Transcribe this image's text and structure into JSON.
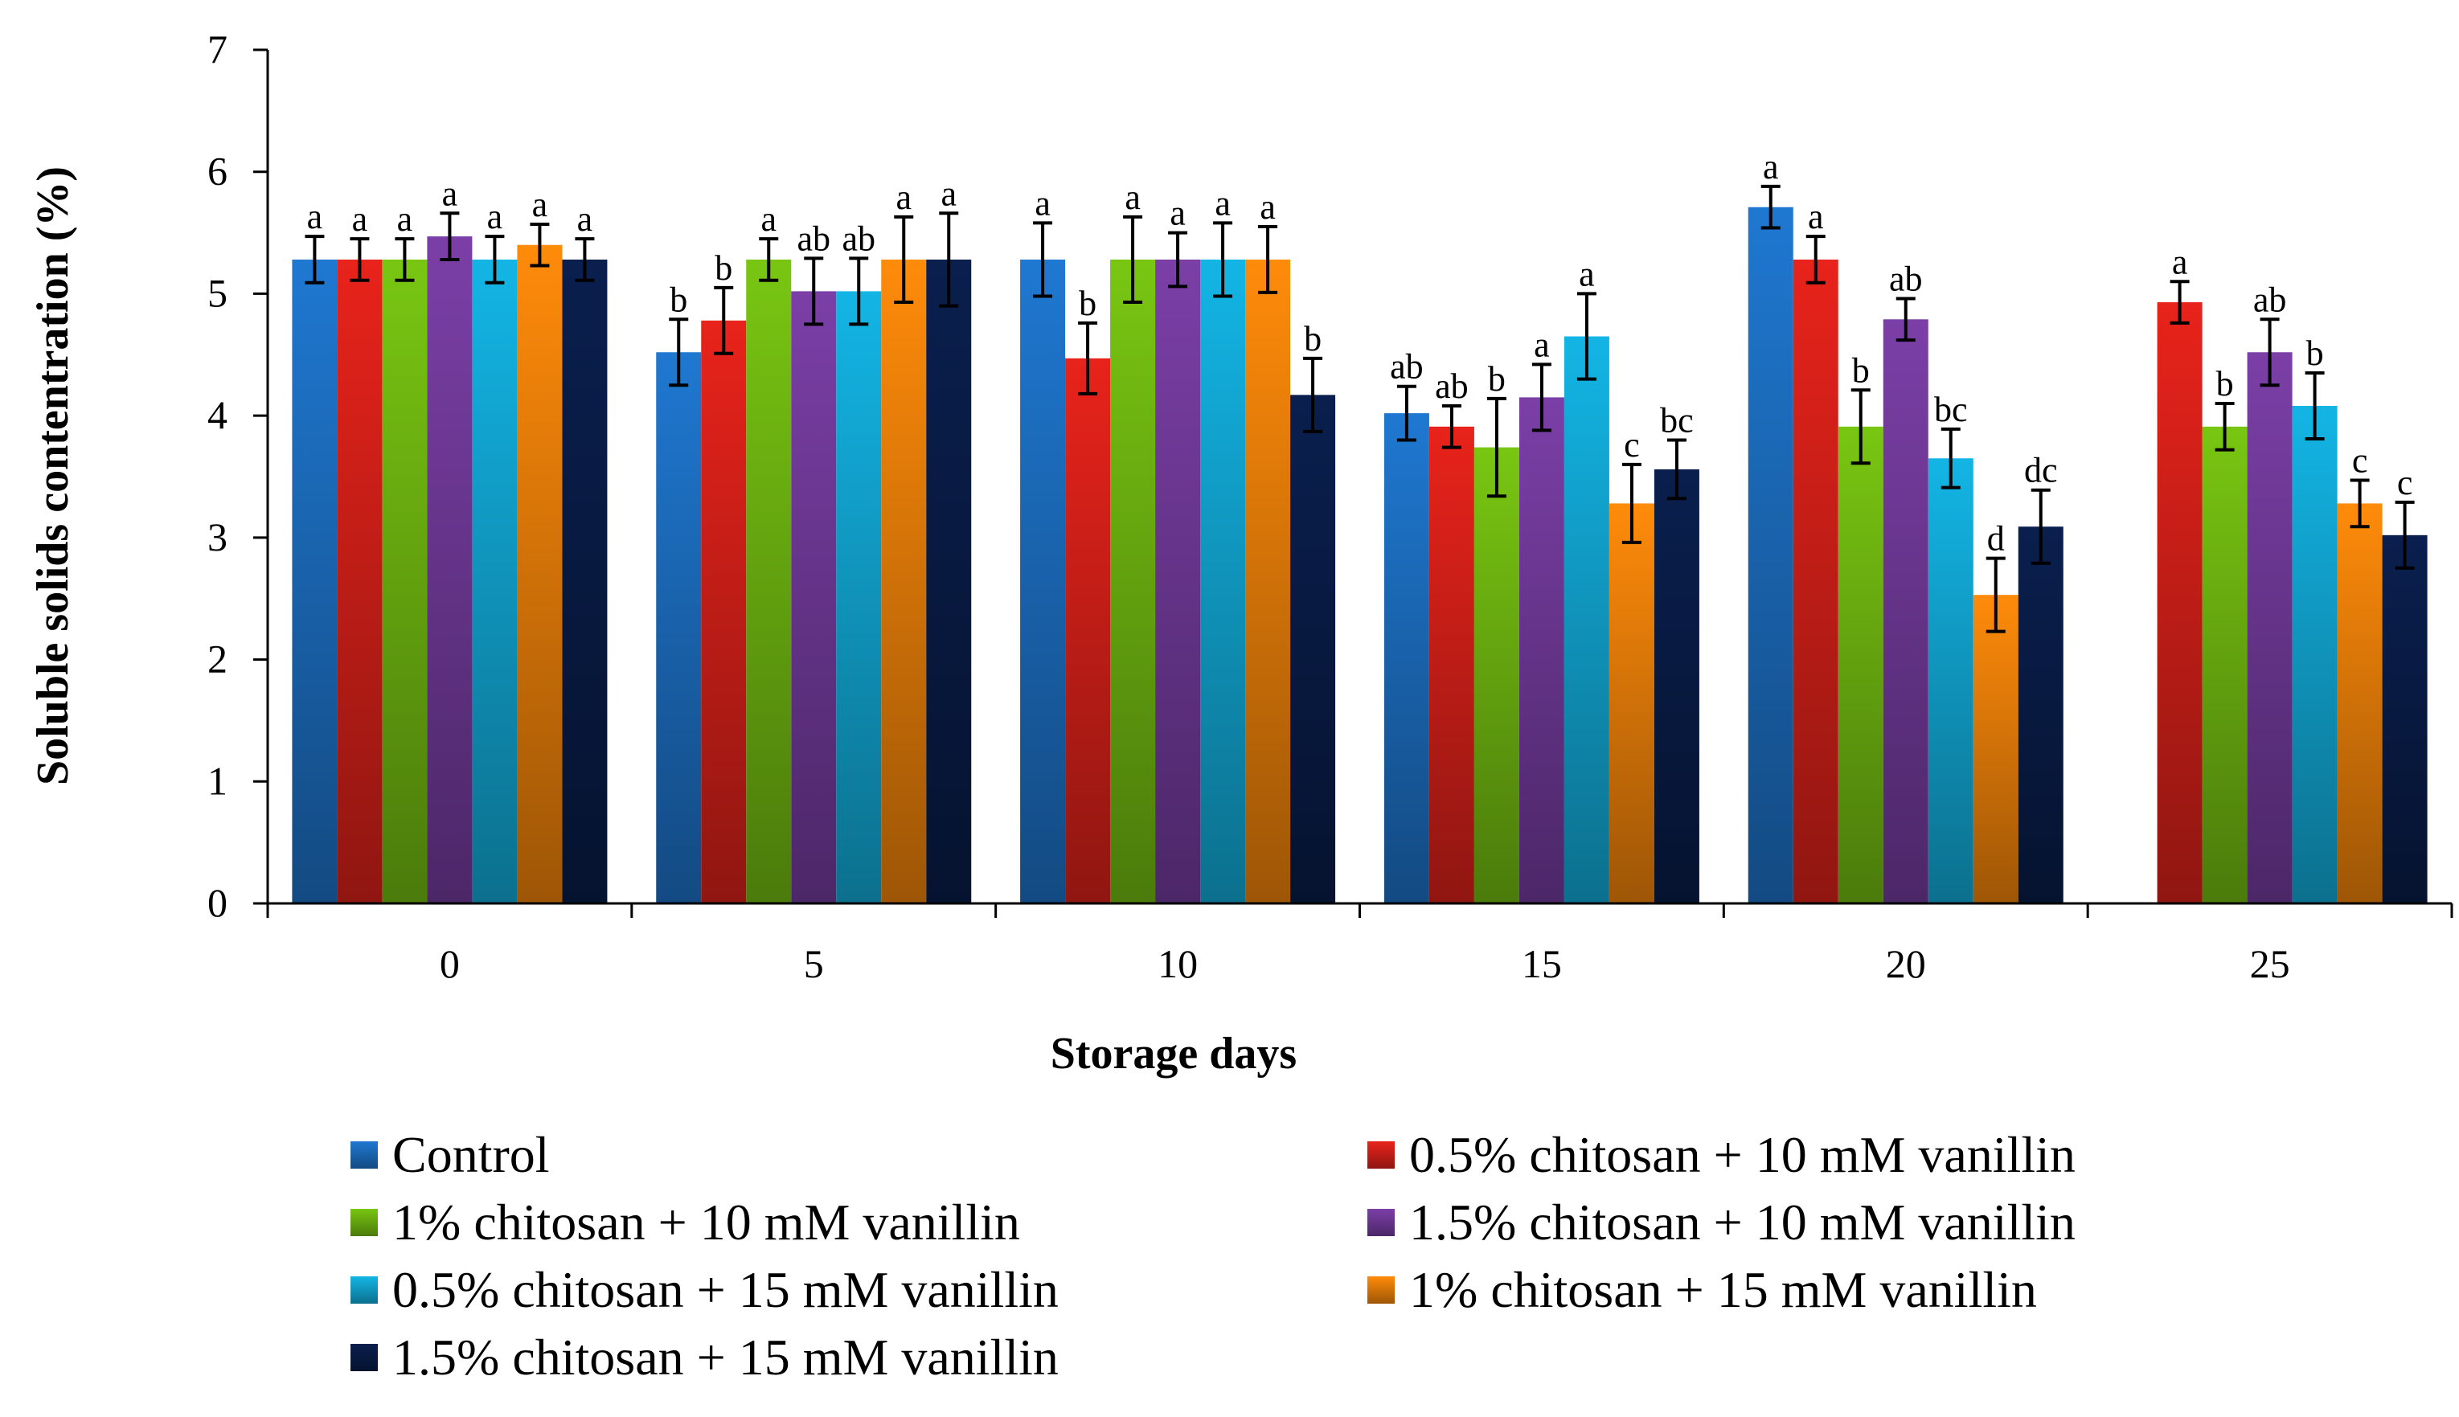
{
  "chart_data": {
    "type": "bar",
    "title": "",
    "xlabel": "Storage days",
    "ylabel": "Soluble solids contentration (%)",
    "ylim": [
      0,
      7
    ],
    "yticks": [
      "0",
      "1",
      "2",
      "3",
      "4",
      "5",
      "6",
      "7"
    ],
    "categories": [
      "0",
      "5",
      "10",
      "15",
      "20",
      "25"
    ],
    "grid": false,
    "legend_position": "bottom",
    "series": [
      {
        "name": "Control",
        "color": "#1f78d1",
        "values": [
          5.28,
          4.52,
          5.28,
          4.02,
          5.71,
          null
        ],
        "errors": [
          0.19,
          0.27,
          0.3,
          0.22,
          0.17,
          null
        ],
        "labels": [
          "a",
          "b",
          "a",
          "ab",
          "a",
          null
        ]
      },
      {
        "name": "0.5% chitosan + 10 mM vanillin",
        "color": "#e8231b",
        "values": [
          5.28,
          4.78,
          4.47,
          3.91,
          5.28,
          4.93
        ],
        "errors": [
          0.17,
          0.27,
          0.29,
          0.17,
          0.19,
          0.17
        ],
        "labels": [
          "a",
          "b",
          "b",
          "ab",
          "a",
          "a"
        ]
      },
      {
        "name": "1% chitosan + 10 mM vanillin",
        "color": "#79c612",
        "values": [
          5.28,
          5.28,
          5.28,
          3.74,
          3.91,
          3.91
        ],
        "errors": [
          0.17,
          0.17,
          0.35,
          0.4,
          0.3,
          0.19
        ],
        "labels": [
          "a",
          "a",
          "a",
          "b",
          "b",
          "b"
        ]
      },
      {
        "name": "1.5% chitosan + 10 mM vanillin",
        "color": "#7b3fa7",
        "values": [
          5.47,
          5.02,
          5.28,
          4.15,
          4.79,
          4.52
        ],
        "errors": [
          0.19,
          0.27,
          0.22,
          0.27,
          0.17,
          0.27
        ],
        "labels": [
          "a",
          "ab",
          "a",
          "a",
          "ab",
          "ab"
        ]
      },
      {
        "name": "0.5% chitosan + 15 mM vanillin",
        "color": "#13b5e5",
        "values": [
          5.28,
          5.02,
          5.28,
          4.65,
          3.65,
          4.08
        ],
        "errors": [
          0.19,
          0.27,
          0.3,
          0.35,
          0.24,
          0.27
        ],
        "labels": [
          "a",
          "ab",
          "a",
          "a",
          "bc",
          "b"
        ]
      },
      {
        "name": "1% chitosan + 15 mM vanillin",
        "color": "#ff8b0a",
        "values": [
          5.4,
          5.28,
          5.28,
          3.28,
          2.53,
          3.28
        ],
        "errors": [
          0.17,
          0.35,
          0.27,
          0.32,
          0.3,
          0.19
        ],
        "labels": [
          "a",
          "a",
          "a",
          "c",
          "d",
          "c"
        ]
      },
      {
        "name": "1.5% chitosan + 15 mM vanillin",
        "color": "#0a1f4e",
        "values": [
          5.28,
          5.28,
          4.17,
          3.56,
          3.09,
          3.02
        ],
        "errors": [
          0.17,
          0.38,
          0.3,
          0.24,
          0.3,
          0.27
        ],
        "labels": [
          "a",
          "a",
          "b",
          "bc",
          "dc",
          "c"
        ]
      }
    ]
  }
}
